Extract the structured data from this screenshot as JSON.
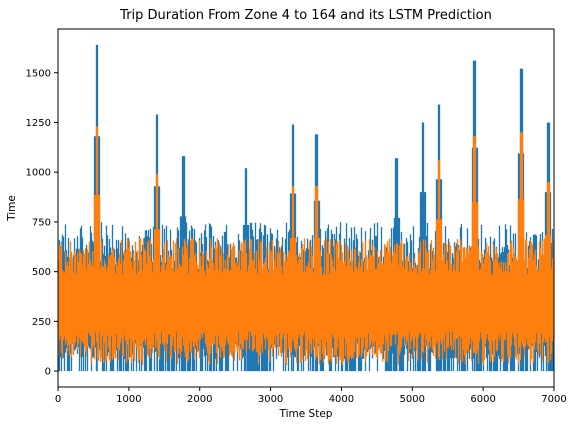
{
  "chart_data": {
    "type": "line",
    "title": "Trip Duration From Zone 4 to 164 and its LSTM Prediction",
    "xlabel": "Time Step",
    "ylabel": "Time",
    "xlim": [
      0,
      7000
    ],
    "ylim": [
      -80,
      1720
    ],
    "grid": false,
    "x_ticks": [
      0,
      1000,
      2000,
      3000,
      4000,
      5000,
      6000,
      7000
    ],
    "y_ticks": [
      0,
      250,
      500,
      750,
      1000,
      1250,
      1500
    ],
    "colors": {
      "actual": "#1f77b4",
      "prediction": "#ff7f0e"
    },
    "series": [
      {
        "role": "actual",
        "n_points": 7000,
        "typical_range": [
          100,
          700
        ],
        "peaks": [
          {
            "x": 550,
            "y": 1640
          },
          {
            "x": 1400,
            "y": 1290
          },
          {
            "x": 1770,
            "y": 1080
          },
          {
            "x": 2650,
            "y": 1020
          },
          {
            "x": 3320,
            "y": 1240
          },
          {
            "x": 3650,
            "y": 1190
          },
          {
            "x": 4780,
            "y": 1070
          },
          {
            "x": 5150,
            "y": 1250
          },
          {
            "x": 5380,
            "y": 1340
          },
          {
            "x": 5880,
            "y": 1560
          },
          {
            "x": 6540,
            "y": 1520
          },
          {
            "x": 6920,
            "y": 1250
          }
        ]
      },
      {
        "role": "prediction",
        "n_points": 7000,
        "typical_range": [
          150,
          620
        ],
        "peaks": [
          {
            "x": 550,
            "y": 1230
          },
          {
            "x": 1400,
            "y": 990
          },
          {
            "x": 3320,
            "y": 930
          },
          {
            "x": 3650,
            "y": 930
          },
          {
            "x": 5380,
            "y": 1060
          },
          {
            "x": 5880,
            "y": 1180
          },
          {
            "x": 6540,
            "y": 1200
          },
          {
            "x": 6920,
            "y": 950
          }
        ]
      }
    ]
  }
}
